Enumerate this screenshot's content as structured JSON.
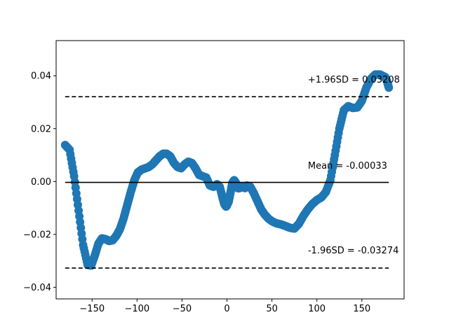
{
  "chart_data": {
    "type": "scatter",
    "title": "",
    "xlabel": "",
    "ylabel": "",
    "xlim": [
      -190,
      197
    ],
    "ylim": [
      -0.0444,
      0.0533
    ],
    "grid": false,
    "x_ticks": [
      -150,
      -100,
      -50,
      0,
      50,
      100,
      150
    ],
    "x_tick_labels": [
      "−150",
      "−100",
      "−50",
      "0",
      "50",
      "100",
      "150"
    ],
    "y_ticks": [
      -0.04,
      -0.02,
      0.0,
      0.02,
      0.04
    ],
    "y_tick_labels": [
      "−0.04",
      "−0.02",
      "0.00",
      "0.02",
      "0.04"
    ],
    "series_color": "#1f77b4",
    "series": [
      {
        "x": [
          -180,
          -175,
          -170,
          -165,
          -160,
          -155,
          -151,
          -147,
          -143,
          -139,
          -135,
          -131,
          -127,
          -123,
          -119,
          -115,
          -111,
          -107,
          -103,
          -99,
          -95,
          -91,
          -87,
          -83,
          -79,
          -75,
          -71,
          -67,
          -63,
          -59,
          -55,
          -51,
          -47,
          -43,
          -39,
          -35,
          -31,
          -27,
          -23,
          -19,
          -15,
          -11,
          -8,
          -5,
          -3,
          -1,
          0,
          2,
          4,
          6,
          8,
          10,
          12,
          14,
          16,
          18,
          20,
          22,
          26,
          30,
          34,
          38,
          42,
          46,
          50,
          55,
          60,
          65,
          70,
          75,
          80,
          85,
          90,
          95,
          100,
          105,
          110,
          115,
          120,
          125,
          130,
          135,
          140,
          145,
          150,
          155,
          160,
          165,
          170,
          173,
          176,
          178,
          180
        ],
        "y": [
          0.0138,
          0.012,
          0.002,
          -0.011,
          -0.024,
          -0.0315,
          -0.0318,
          -0.028,
          -0.0235,
          -0.0215,
          -0.0218,
          -0.0225,
          -0.0222,
          -0.0205,
          -0.018,
          -0.014,
          -0.009,
          -0.004,
          0.0005,
          0.0035,
          0.0045,
          0.005,
          0.0055,
          0.0065,
          0.008,
          0.0095,
          0.0105,
          0.0105,
          0.0095,
          0.007,
          0.0055,
          0.005,
          0.0065,
          0.0075,
          0.007,
          0.005,
          0.0025,
          0.002,
          0.0015,
          -0.0015,
          -0.002,
          -0.001,
          -0.002,
          -0.006,
          -0.0085,
          -0.0095,
          -0.009,
          -0.0075,
          -0.004,
          -0.0005,
          0.0005,
          -0.0005,
          -0.0025,
          -0.0025,
          -0.002,
          -0.002,
          -0.0025,
          -0.0015,
          -0.002,
          -0.0045,
          -0.0075,
          -0.0105,
          -0.0125,
          -0.014,
          -0.015,
          -0.0158,
          -0.0162,
          -0.0168,
          -0.0175,
          -0.0178,
          -0.016,
          -0.013,
          -0.0105,
          -0.0085,
          -0.007,
          -0.006,
          -0.004,
          0.0005,
          0.01,
          0.02,
          0.027,
          0.0285,
          0.0278,
          0.028,
          0.0305,
          0.0355,
          0.0388,
          0.0405,
          0.0405,
          0.04,
          0.0395,
          0.038,
          0.0355
        ]
      }
    ],
    "reference_lines": [
      {
        "y": 0.03208,
        "style": "dashed",
        "label": "+1.96SD = 0.03208",
        "label_x": 90,
        "label_y": 0.0374
      },
      {
        "y": -0.00033,
        "style": "solid",
        "label": "Mean = -0.00033",
        "label_x": 90,
        "label_y": 0.0049
      },
      {
        "y": -0.03274,
        "style": "dashed",
        "label": "-1.96SD = -0.03274",
        "label_x": 90,
        "label_y": -0.0272
      }
    ],
    "reference_x_range": [
      -180,
      180
    ]
  }
}
